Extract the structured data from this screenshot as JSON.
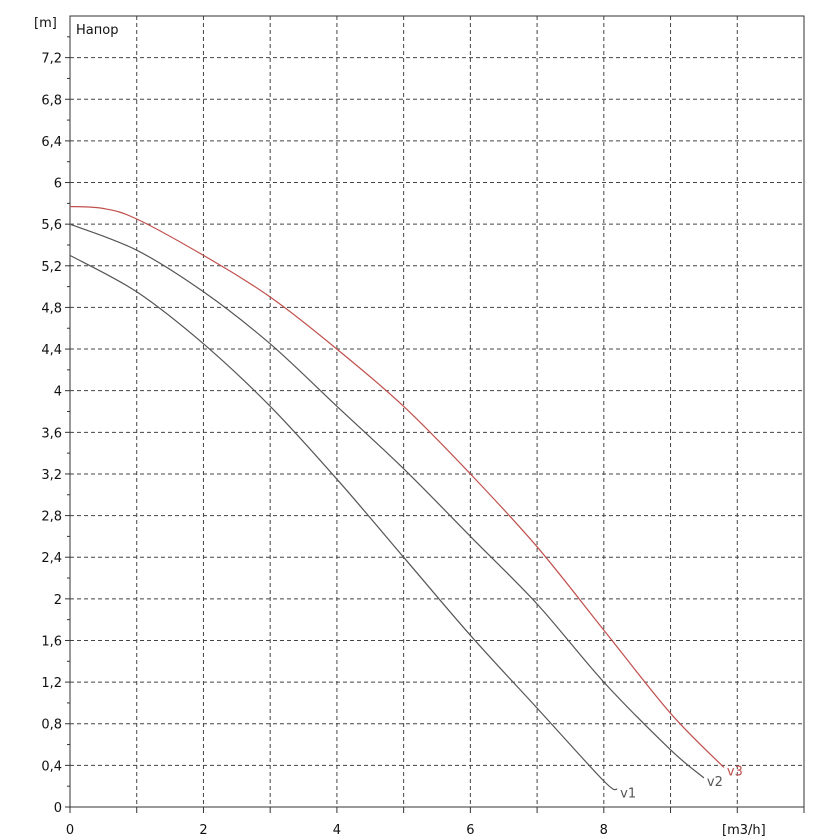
{
  "chart_data": {
    "type": "line",
    "title": "",
    "header_label": "Напор",
    "xlabel": "[m3/h]",
    "ylabel": "[m]",
    "xlim": [
      0,
      11
    ],
    "ylim": [
      0,
      7.6
    ],
    "grid": true,
    "x_ticks": [
      "0",
      "2",
      "4",
      "6",
      "8"
    ],
    "y_ticks": [
      "0",
      "0,4",
      "0,8",
      "1,2",
      "1,6",
      "2",
      "2,4",
      "2,8",
      "3,2",
      "3,6",
      "4",
      "4,4",
      "4,8",
      "5,2",
      "5,6",
      "6",
      "6,4",
      "6,8",
      "7,2"
    ],
    "series": [
      {
        "name": "v1",
        "color": "#555555",
        "points": [
          [
            0,
            5.3
          ],
          [
            1,
            4.95
          ],
          [
            2,
            4.45
          ],
          [
            3,
            3.85
          ],
          [
            4,
            3.15
          ],
          [
            5,
            2.4
          ],
          [
            6,
            1.65
          ],
          [
            7,
            0.95
          ],
          [
            8,
            0.25
          ],
          [
            8.2,
            0.17
          ]
        ]
      },
      {
        "name": "v2",
        "color": "#555555",
        "points": [
          [
            0,
            5.6
          ],
          [
            1,
            5.35
          ],
          [
            2,
            4.95
          ],
          [
            3,
            4.45
          ],
          [
            4,
            3.85
          ],
          [
            5,
            3.25
          ],
          [
            6,
            2.6
          ],
          [
            7,
            1.95
          ],
          [
            8,
            1.2
          ],
          [
            9,
            0.55
          ],
          [
            9.5,
            0.28
          ]
        ]
      },
      {
        "name": "v3",
        "color": "#c0504d",
        "points": [
          [
            0,
            5.77
          ],
          [
            0.5,
            5.75
          ],
          [
            1,
            5.65
          ],
          [
            2,
            5.3
          ],
          [
            3,
            4.9
          ],
          [
            4,
            4.4
          ],
          [
            5,
            3.85
          ],
          [
            6,
            3.2
          ],
          [
            7,
            2.5
          ],
          [
            8,
            1.7
          ],
          [
            9,
            0.9
          ],
          [
            9.8,
            0.38
          ]
        ]
      }
    ]
  }
}
